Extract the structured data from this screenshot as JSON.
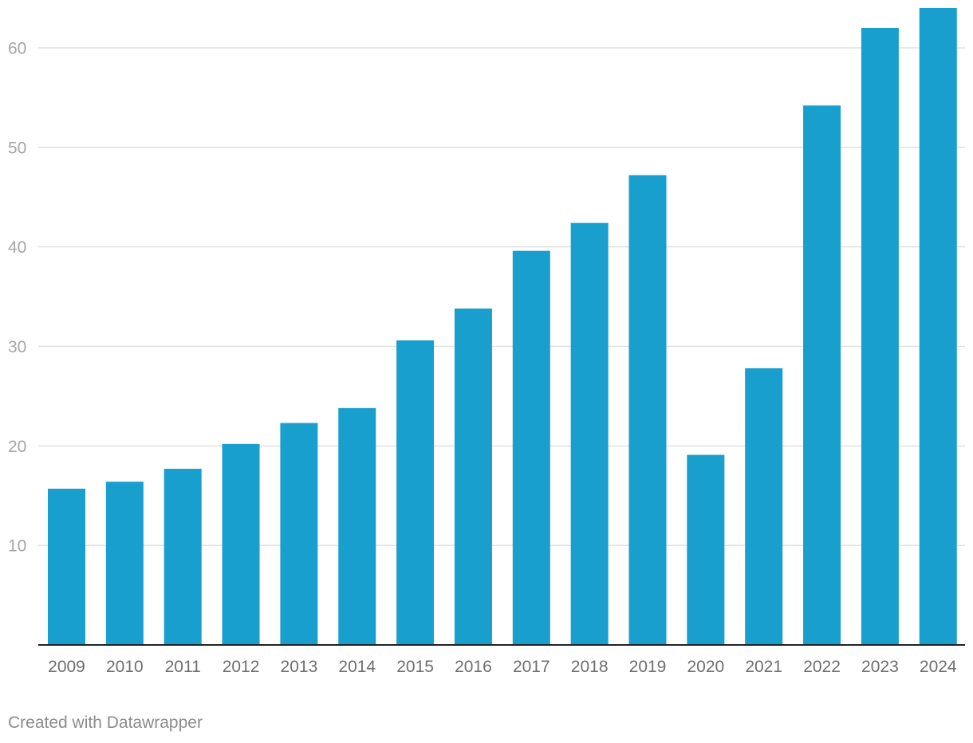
{
  "chart_data": {
    "type": "bar",
    "title": "",
    "xlabel": "",
    "ylabel": "",
    "categories": [
      "2009",
      "2010",
      "2011",
      "2012",
      "2013",
      "2014",
      "2015",
      "2016",
      "2017",
      "2018",
      "2019",
      "2020",
      "2021",
      "2022",
      "2023",
      "2024"
    ],
    "values": [
      15.7,
      16.4,
      17.7,
      20.2,
      22.3,
      23.8,
      30.6,
      33.8,
      39.6,
      42.4,
      47.2,
      19.1,
      27.8,
      54.2,
      62.0,
      64.0
    ],
    "ylim": [
      0,
      64
    ],
    "yticks": [
      10,
      20,
      30,
      40,
      50,
      60
    ],
    "grid": true,
    "legend": "none"
  },
  "colors": {
    "bar": "#199fcd",
    "grid": "#e0e0e0",
    "axis": "#222222",
    "ytick": "#a6a6a6",
    "xtick": "#6e6e6e"
  },
  "footer": {
    "credit": "Created with Datawrapper"
  }
}
